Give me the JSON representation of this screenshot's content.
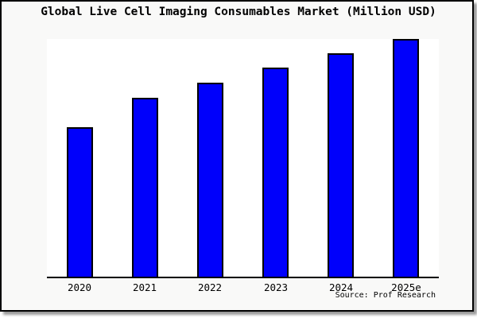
{
  "chart_data": {
    "type": "bar",
    "title": "Global Live Cell Imaging Consumables Market (Million USD)",
    "categories": [
      "2020",
      "2021",
      "2022",
      "2023",
      "2024",
      "2025e"
    ],
    "values": [
      62.9,
      75.3,
      81.6,
      88.0,
      94.0,
      100.0
    ],
    "value_units": "relative index (no y-axis scale shown; bar heights normalized to 2025e = 100)",
    "xlabel": "",
    "ylabel": "",
    "ylim": [
      0,
      100
    ],
    "grid": false,
    "legend": false,
    "source": "Source: Prof Research",
    "colors": {
      "bar_fill": "#0000fb",
      "bar_border": "#000000",
      "axis": "#000000",
      "plot_background": "#ffffff",
      "card_background": "#f9f9f8",
      "frame_border": "#000000",
      "shadow": "#9a9a9a",
      "text": "#000000"
    }
  }
}
